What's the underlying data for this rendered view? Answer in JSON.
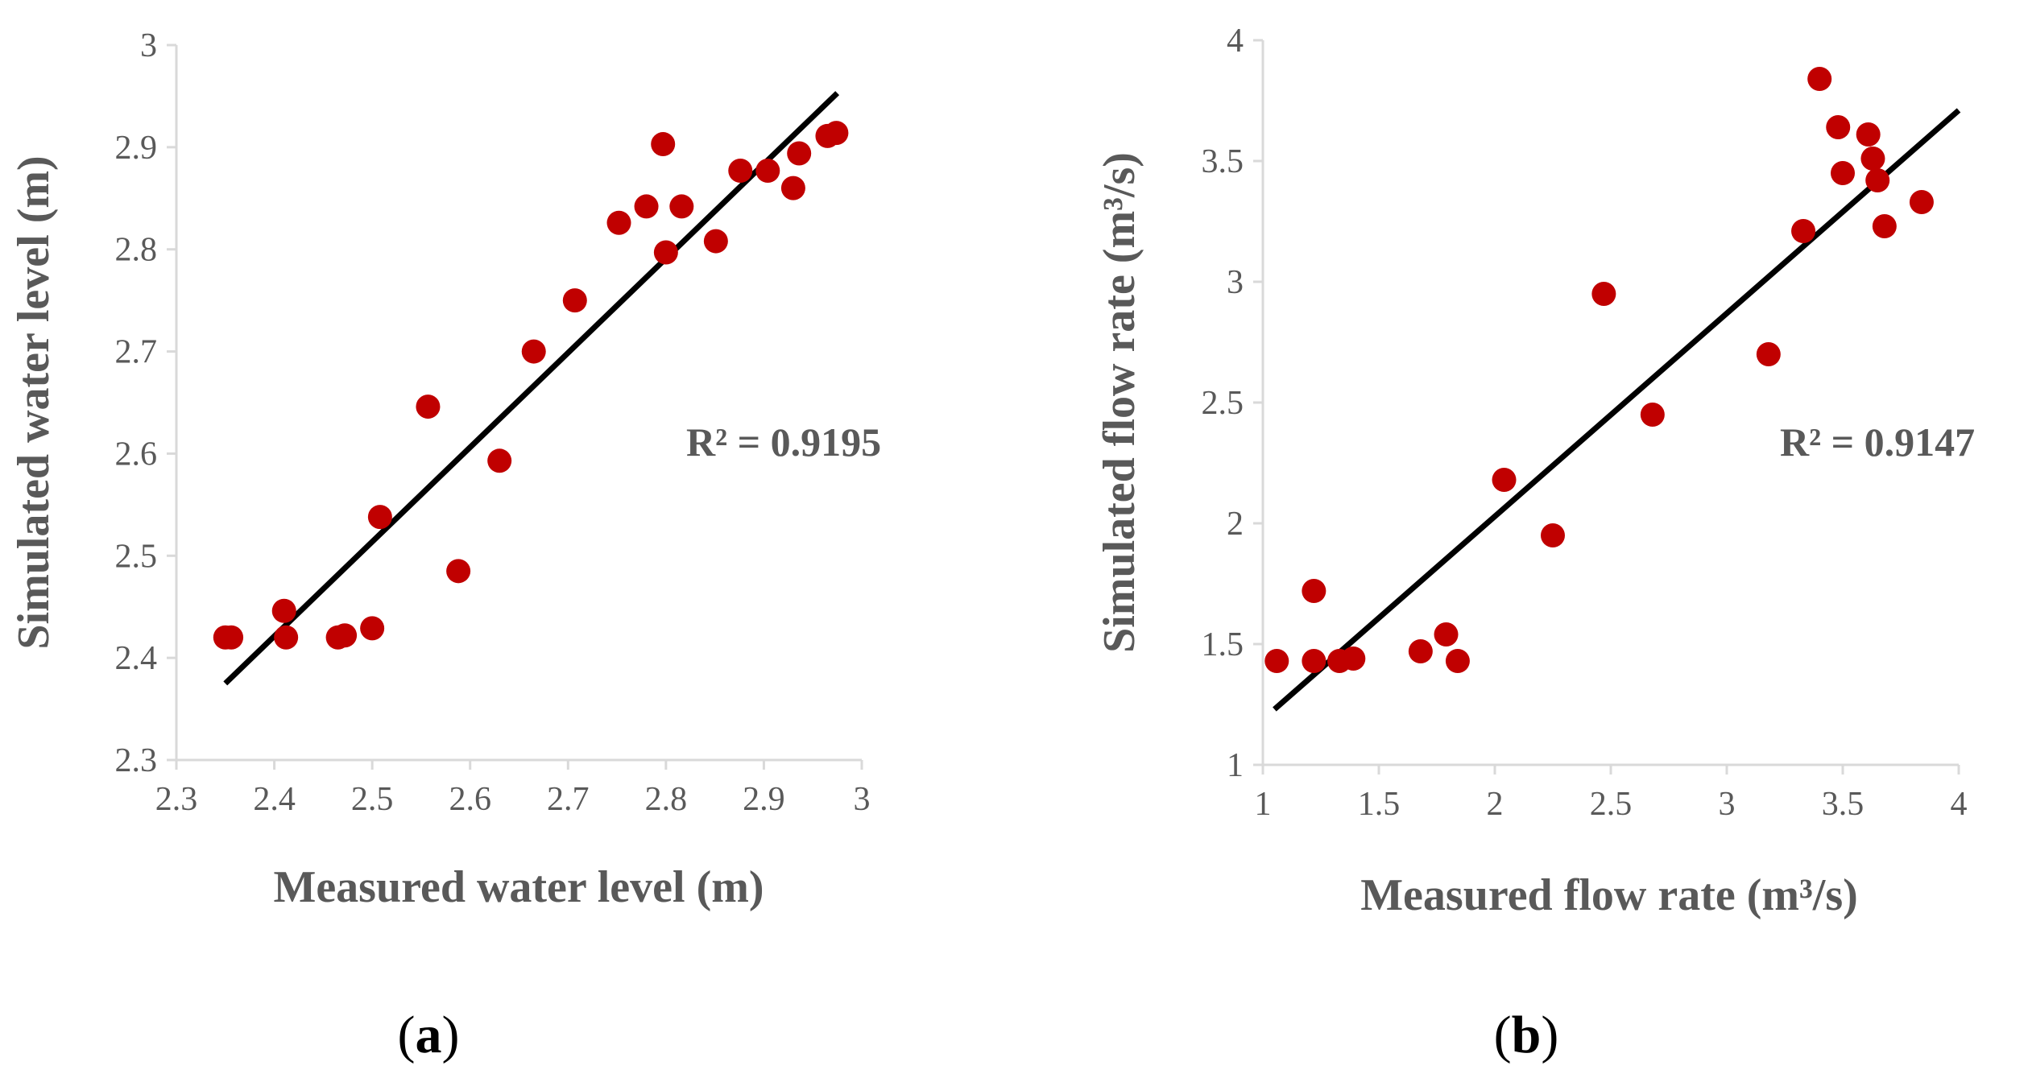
{
  "chart_data": [
    {
      "type": "scatter",
      "panel_label": "(a)",
      "panel_letter": "a",
      "paren_open": "(",
      "paren_close": ")",
      "xlabel": "Measured water level (m)",
      "ylabel": "Simulated water level (m)",
      "xlim": [
        2.3,
        3
      ],
      "ylim": [
        2.3,
        3
      ],
      "xticks": [
        "2.3",
        "2.4",
        "2.5",
        "2.6",
        "2.7",
        "2.8",
        "2.9",
        "3"
      ],
      "yticks": [
        "2.3",
        "2.4",
        "2.5",
        "2.6",
        "2.7",
        "2.8",
        "2.9",
        "3"
      ],
      "annotation": "R² = 0.9195",
      "marker_color": "#c00000",
      "trendline_color": "#000000",
      "trendline": {
        "x": [
          2.35,
          2.975
        ],
        "y": [
          2.375,
          2.953
        ]
      },
      "points": [
        {
          "x": 2.35,
          "y": 2.42
        },
        {
          "x": 2.356,
          "y": 2.42
        },
        {
          "x": 2.41,
          "y": 2.446
        },
        {
          "x": 2.412,
          "y": 2.42
        },
        {
          "x": 2.465,
          "y": 2.42
        },
        {
          "x": 2.472,
          "y": 2.422
        },
        {
          "x": 2.5,
          "y": 2.429
        },
        {
          "x": 2.508,
          "y": 2.538
        },
        {
          "x": 2.557,
          "y": 2.646
        },
        {
          "x": 2.588,
          "y": 2.485
        },
        {
          "x": 2.63,
          "y": 2.593
        },
        {
          "x": 2.665,
          "y": 2.7
        },
        {
          "x": 2.707,
          "y": 2.75
        },
        {
          "x": 2.752,
          "y": 2.826
        },
        {
          "x": 2.78,
          "y": 2.842
        },
        {
          "x": 2.797,
          "y": 2.903
        },
        {
          "x": 2.8,
          "y": 2.797
        },
        {
          "x": 2.816,
          "y": 2.842
        },
        {
          "x": 2.851,
          "y": 2.808
        },
        {
          "x": 2.876,
          "y": 2.877
        },
        {
          "x": 2.904,
          "y": 2.877
        },
        {
          "x": 2.93,
          "y": 2.86
        },
        {
          "x": 2.936,
          "y": 2.894
        },
        {
          "x": 2.965,
          "y": 2.911
        },
        {
          "x": 2.974,
          "y": 2.914
        }
      ]
    },
    {
      "type": "scatter",
      "panel_label": "(b)",
      "panel_letter": "b",
      "paren_open": "(",
      "paren_close": ")",
      "xlabel": "Measured flow rate (m³/s)",
      "ylabel": "Simulated flow rate (m³/s)",
      "xlim": [
        1,
        4
      ],
      "ylim": [
        1,
        4
      ],
      "xticks": [
        "1",
        "1.5",
        "2",
        "2.5",
        "3",
        "3.5",
        "4"
      ],
      "yticks": [
        "1",
        "1.5",
        "2",
        "2.5",
        "3",
        "3.5",
        "4"
      ],
      "annotation": "R² = 0.9147",
      "marker_color": "#c00000",
      "trendline_color": "#000000",
      "trendline": {
        "x": [
          1.05,
          4.0
        ],
        "y": [
          1.23,
          3.71
        ]
      },
      "points": [
        {
          "x": 1.06,
          "y": 1.43
        },
        {
          "x": 1.22,
          "y": 1.72
        },
        {
          "x": 1.22,
          "y": 1.43
        },
        {
          "x": 1.33,
          "y": 1.43
        },
        {
          "x": 1.39,
          "y": 1.44
        },
        {
          "x": 1.68,
          "y": 1.47
        },
        {
          "x": 1.79,
          "y": 1.54
        },
        {
          "x": 1.84,
          "y": 1.43
        },
        {
          "x": 2.04,
          "y": 2.18
        },
        {
          "x": 2.25,
          "y": 1.95
        },
        {
          "x": 2.47,
          "y": 2.95
        },
        {
          "x": 2.68,
          "y": 2.45
        },
        {
          "x": 3.18,
          "y": 2.7
        },
        {
          "x": 3.33,
          "y": 3.21
        },
        {
          "x": 3.4,
          "y": 3.84
        },
        {
          "x": 3.48,
          "y": 3.64
        },
        {
          "x": 3.5,
          "y": 3.45
        },
        {
          "x": 3.61,
          "y": 3.61
        },
        {
          "x": 3.63,
          "y": 3.51
        },
        {
          "x": 3.65,
          "y": 3.42
        },
        {
          "x": 3.68,
          "y": 3.23
        },
        {
          "x": 3.84,
          "y": 3.33
        }
      ]
    }
  ]
}
